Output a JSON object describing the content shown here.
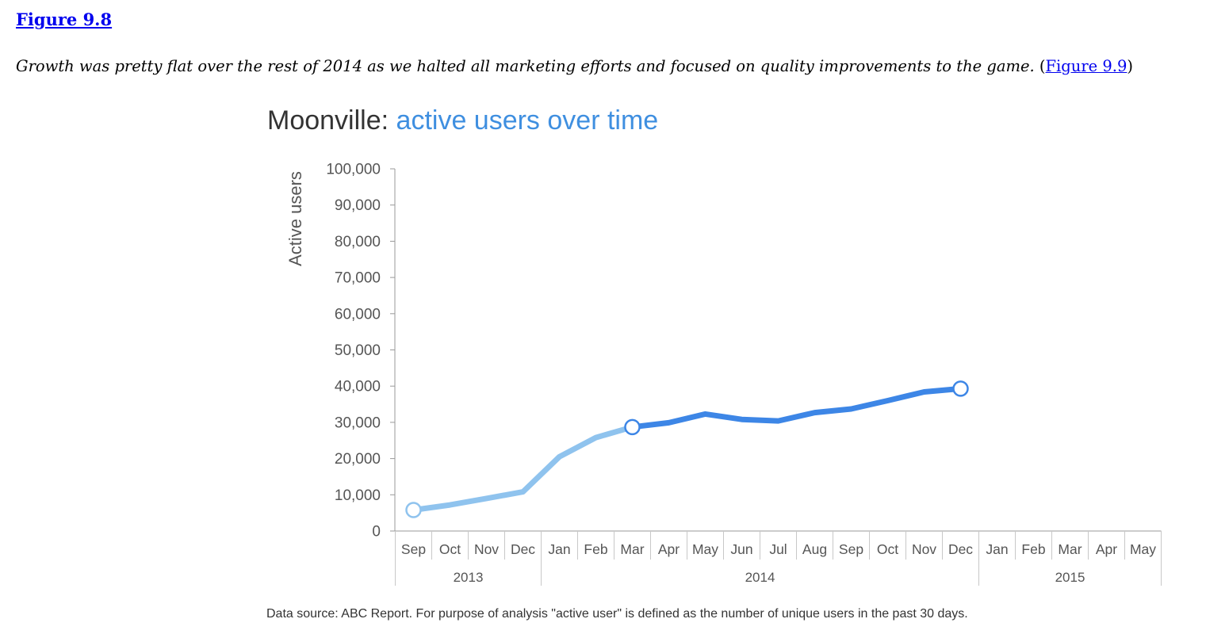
{
  "figure_label": "Figure 9.8",
  "caption": {
    "text": "Growth was pretty flat over the rest of 2014 as we halted all marketing efforts and focused on quality improvements to the game.",
    "open_paren": "(",
    "link": "Figure 9.9",
    "close_paren": ")"
  },
  "colors": {
    "light_series": "#8fc3ee",
    "dark_series": "#3d86e6",
    "title_accent": "#3f8fe0",
    "title_main": "#333333",
    "axis": "#999999"
  },
  "chart_data": {
    "type": "line",
    "title_main": "Moonville:",
    "title_accent": "active users over time",
    "ylabel": "Active users",
    "xlabel": "",
    "ylim": [
      0,
      100000
    ],
    "yticks": [
      "0",
      "10,000",
      "20,000",
      "30,000",
      "40,000",
      "50,000",
      "60,000",
      "70,000",
      "80,000",
      "90,000",
      "100,000"
    ],
    "categories": [
      "Sep",
      "Oct",
      "Nov",
      "Dec",
      "Jan",
      "Feb",
      "Mar",
      "Apr",
      "May",
      "Jun",
      "Jul",
      "Aug",
      "Sep",
      "Oct",
      "Nov",
      "Dec",
      "Jan",
      "Feb",
      "Mar",
      "Apr",
      "May"
    ],
    "years": [
      {
        "label": "2013",
        "start": 0,
        "end": 3
      },
      {
        "label": "2014",
        "start": 4,
        "end": 15
      },
      {
        "label": "2015",
        "start": 16,
        "end": 20
      }
    ],
    "series": [
      {
        "color": "#8fc3ee",
        "x": [
          "Sep 2013",
          "Oct 2013",
          "Nov 2013",
          "Dec 2013",
          "Jan 2014",
          "Feb 2014",
          "Mar 2014"
        ],
        "values": [
          5800,
          7200,
          9000,
          10800,
          20500,
          25800,
          28700
        ]
      },
      {
        "color": "#3d86e6",
        "x": [
          "Mar 2014",
          "Apr 2014",
          "May 2014",
          "Jun 2014",
          "Jul 2014",
          "Aug 2014",
          "Sep 2014",
          "Oct 2014",
          "Nov 2014",
          "Dec 2014"
        ],
        "values": [
          28700,
          29900,
          32300,
          30800,
          30400,
          32700,
          33700,
          36000,
          38400,
          39300
        ]
      }
    ],
    "markers": [
      {
        "x": "Sep 2013",
        "value": 5800,
        "color": "#8fc3ee"
      },
      {
        "x": "Mar 2014",
        "value": 28700,
        "color": "#3d86e6"
      },
      {
        "x": "Dec 2014",
        "value": 39300,
        "color": "#3d86e6"
      }
    ],
    "grid": false
  },
  "source_note": "Data source: ABC Report. For purpose of analysis \"active user\" is defined as the number of unique users in the past 30 days."
}
